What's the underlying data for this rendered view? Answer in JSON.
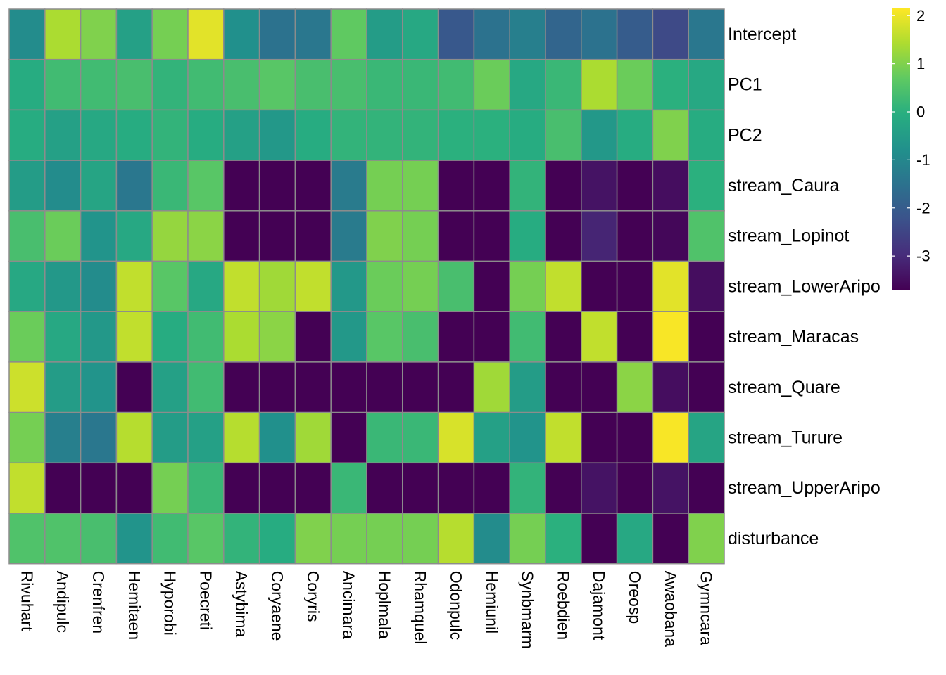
{
  "chart_data": {
    "type": "heatmap",
    "rows": [
      "Intercept",
      "PC1",
      "PC2",
      "stream_Caura",
      "stream_Lopinot",
      "stream_LowerAripo",
      "stream_Maracas",
      "stream_Quare",
      "stream_Turure",
      "stream_UpperAripo",
      "disturbance"
    ],
    "columns": [
      "Rivuhart",
      "Andipulc",
      "Crenfren",
      "Hemitaen",
      "Hyporobi",
      "Poecreti",
      "Astybima",
      "Coryaene",
      "Coryris",
      "Ancimara",
      "Hoplmala",
      "Rhamquel",
      "Odonpulc",
      "Hemiunil",
      "Synbmarm",
      "Roebdien",
      "Dajamont",
      "Oreosp",
      "Awaobana",
      "Gymncara"
    ],
    "values": [
      [
        -0.9,
        1.4,
        1.0,
        -0.4,
        0.9,
        1.9,
        -0.8,
        -1.5,
        -1.4,
        0.7,
        -0.5,
        -0.2,
        -2.1,
        -1.5,
        -1.2,
        -1.8,
        -1.5,
        -2.0,
        -2.4,
        -1.4
      ],
      [
        -0.1,
        0.3,
        0.3,
        0.4,
        0.1,
        0.3,
        0.4,
        0.6,
        0.4,
        0.4,
        0.2,
        0.2,
        0.3,
        0.8,
        -0.2,
        0.2,
        1.4,
        0.8,
        0.0,
        -0.2
      ],
      [
        -0.1,
        -0.4,
        -0.2,
        -0.1,
        0.1,
        -0.1,
        -0.4,
        -0.6,
        -0.1,
        0.1,
        0.1,
        0.1,
        0.0,
        0.0,
        -0.1,
        0.4,
        -0.6,
        -0.1,
        1.0,
        -0.1
      ],
      [
        -0.5,
        -0.9,
        -0.3,
        -1.4,
        0.2,
        0.6,
        -3.7,
        -3.7,
        -3.7,
        -1.3,
        0.9,
        0.9,
        -3.7,
        -3.7,
        0.1,
        -3.7,
        -3.4,
        -3.7,
        -3.5,
        0.0
      ],
      [
        0.4,
        0.8,
        -0.7,
        -0.2,
        1.2,
        1.1,
        -3.7,
        -3.7,
        -3.7,
        -1.3,
        1.0,
        0.9,
        -3.7,
        -3.7,
        -0.1,
        -3.7,
        -3.1,
        -3.7,
        -3.6,
        0.5
      ],
      [
        -0.2,
        -0.6,
        -0.9,
        1.6,
        0.6,
        -0.2,
        1.6,
        1.3,
        1.6,
        -0.6,
        0.8,
        0.9,
        0.4,
        -3.7,
        0.9,
        1.6,
        -3.7,
        -3.7,
        1.9,
        -3.5
      ],
      [
        0.8,
        -0.2,
        -0.6,
        1.6,
        -0.1,
        0.3,
        1.4,
        1.1,
        -3.7,
        -0.6,
        0.6,
        0.4,
        -3.7,
        -3.7,
        0.3,
        -3.7,
        1.6,
        -3.7,
        2.1,
        -3.7
      ],
      [
        1.7,
        -0.5,
        -0.7,
        -3.7,
        -0.4,
        0.3,
        -3.7,
        -3.7,
        -3.7,
        -3.7,
        -3.7,
        -3.7,
        -3.7,
        1.3,
        -0.5,
        -3.7,
        -3.7,
        1.1,
        -3.5,
        -3.7
      ],
      [
        0.9,
        -1.2,
        -1.4,
        1.5,
        -0.5,
        -0.4,
        1.5,
        -0.8,
        1.3,
        -3.7,
        0.2,
        0.2,
        1.8,
        -0.4,
        -0.7,
        1.6,
        -3.7,
        -3.7,
        2.1,
        -0.3
      ],
      [
        1.6,
        -3.7,
        -3.7,
        -3.7,
        0.9,
        0.2,
        -3.7,
        -3.7,
        -3.7,
        0.2,
        -3.7,
        -3.7,
        -3.7,
        -3.7,
        0.1,
        -3.7,
        -3.4,
        -3.7,
        -3.4,
        -3.7
      ],
      [
        0.5,
        0.5,
        0.4,
        -0.7,
        0.3,
        0.6,
        0.1,
        -0.1,
        1.0,
        0.9,
        0.9,
        0.9,
        1.5,
        -0.9,
        0.9,
        0.0,
        -3.7,
        -0.2,
        -3.7,
        1.0
      ]
    ],
    "value_range": [
      -3.7,
      2.15
    ],
    "colorscale": "viridis",
    "cell_border_color": "#8c8c8c",
    "legend": {
      "position": "right",
      "ticks": [
        {
          "label": "2",
          "value": 2
        },
        {
          "label": "1",
          "value": 1
        },
        {
          "label": "0",
          "value": 0
        },
        {
          "label": "-1",
          "value": -1
        },
        {
          "label": "-2",
          "value": -2
        },
        {
          "label": "-3",
          "value": -3
        }
      ]
    }
  }
}
